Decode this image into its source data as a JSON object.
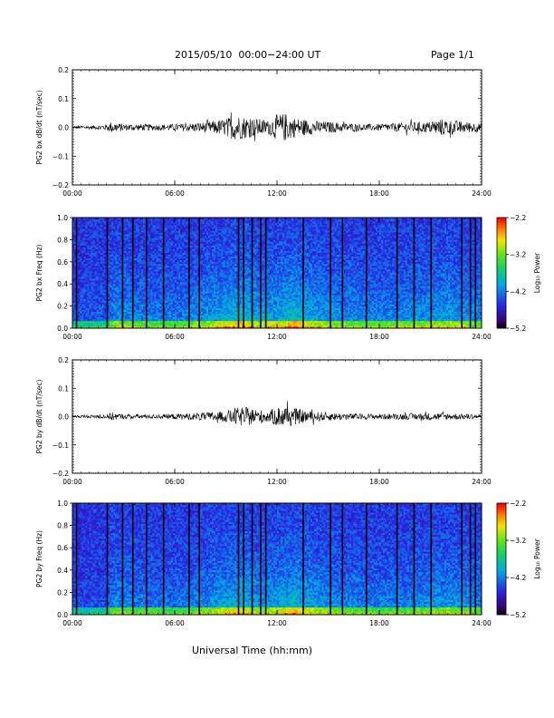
{
  "header": {
    "title": "2015/05/10  00:00−24:00 UT",
    "page": "Page 1/1"
  },
  "footer": {
    "xlabel": "Universal Time (hh:mm)"
  },
  "colors": {
    "trace": "#000000",
    "frame": "#000000",
    "background": "#ffffff"
  },
  "chart_data": [
    {
      "type": "line",
      "ylabel": "PG2 bx dB/dt (nT/sec)",
      "ylim": [
        -0.2,
        0.2
      ],
      "yticks": [
        "0.2",
        "0.1",
        "0.0",
        "−0.1",
        "−0.2"
      ],
      "xlim": [
        "00:00",
        "24:00"
      ],
      "xticks": [
        "00:00",
        "06:00",
        "12:00",
        "18:00",
        "24:00"
      ],
      "envelope": {
        "x_hours": [
          0,
          1,
          2,
          2.3,
          3,
          4,
          5,
          6,
          7,
          8,
          9,
          9.5,
          10,
          11,
          11.5,
          12,
          12.5,
          13,
          14,
          15,
          16,
          17,
          18,
          19,
          20,
          21,
          21.5,
          22,
          23,
          24
        ],
        "amplitude": [
          0.005,
          0.006,
          0.01,
          0.02,
          0.012,
          0.012,
          0.01,
          0.012,
          0.015,
          0.02,
          0.03,
          0.045,
          0.04,
          0.03,
          0.025,
          0.045,
          0.05,
          0.035,
          0.025,
          0.02,
          0.015,
          0.012,
          0.012,
          0.015,
          0.018,
          0.02,
          0.03,
          0.028,
          0.02,
          0.015
        ]
      }
    },
    {
      "type": "heatmap",
      "ylabel": "PG2 bx Freq (Hz)",
      "ylim": [
        0.0,
        1.0
      ],
      "yticks": [
        "1.0",
        "0.8",
        "0.6",
        "0.4",
        "0.2",
        "0.0"
      ],
      "xlim": [
        "00:00",
        "24:00"
      ],
      "xticks": [
        "00:00",
        "06:00",
        "12:00",
        "18:00",
        "24:00"
      ],
      "colorbar": {
        "label": "Log₁₀ Power",
        "range": [
          -5.2,
          -2.2
        ],
        "ticks": [
          "−2.2",
          "−3.2",
          "−4.2",
          "−5.2"
        ]
      },
      "activity": {
        "x_hours": [
          0,
          2,
          2.5,
          4,
          6,
          8,
          9,
          10,
          11,
          12,
          13,
          14,
          16,
          18,
          20,
          21,
          22,
          23,
          24
        ],
        "level": [
          0.15,
          0.2,
          0.5,
          0.4,
          0.35,
          0.5,
          0.65,
          0.7,
          0.55,
          0.6,
          0.75,
          0.6,
          0.45,
          0.4,
          0.45,
          0.5,
          0.55,
          0.5,
          0.4
        ]
      },
      "gap_hours": [
        0.2,
        2.0,
        2.9,
        3.5,
        4.3,
        5.3,
        6.8,
        7.4,
        9.7,
        10.0,
        10.5,
        11.0,
        11.3,
        13.5,
        15.1,
        15.8,
        17.2,
        19.0,
        20.0,
        21.0,
        22.8,
        23.3,
        23.6
      ]
    },
    {
      "type": "line",
      "ylabel": "PG2 by dB/dt (nT/sec)",
      "ylim": [
        -0.2,
        0.2
      ],
      "yticks": [
        "0.2",
        "0.1",
        "0.0",
        "−0.1",
        "−0.2"
      ],
      "xlim": [
        "00:00",
        "24:00"
      ],
      "xticks": [
        "00:00",
        "06:00",
        "12:00",
        "18:00",
        "24:00"
      ],
      "envelope": {
        "x_hours": [
          0,
          1,
          2,
          2.3,
          3,
          4,
          5,
          6,
          7,
          8,
          9,
          9.5,
          10,
          11,
          11.5,
          12,
          12.5,
          13,
          14,
          15,
          16,
          17,
          18,
          19,
          20,
          21,
          22,
          23,
          24
        ],
        "amplitude": [
          0.004,
          0.005,
          0.008,
          0.015,
          0.008,
          0.008,
          0.007,
          0.01,
          0.012,
          0.015,
          0.02,
          0.03,
          0.035,
          0.025,
          0.02,
          0.035,
          0.04,
          0.03,
          0.018,
          0.015,
          0.012,
          0.01,
          0.01,
          0.01,
          0.012,
          0.013,
          0.012,
          0.01,
          0.008
        ]
      }
    },
    {
      "type": "heatmap",
      "ylabel": "PG2 by Freq (Hz)",
      "ylim": [
        0.0,
        1.0
      ],
      "yticks": [
        "1.0",
        "0.8",
        "0.6",
        "0.4",
        "0.2",
        "0.0"
      ],
      "xlim": [
        "00:00",
        "24:00"
      ],
      "xticks": [
        "00:00",
        "06:00",
        "12:00",
        "18:00",
        "24:00"
      ],
      "colorbar": {
        "label": "Log₁₀ Power",
        "range": [
          -5.2,
          -2.2
        ],
        "ticks": [
          "−2.2",
          "−3.2",
          "−4.2",
          "−5.2"
        ]
      },
      "activity": {
        "x_hours": [
          0,
          2,
          2.5,
          4,
          6,
          8,
          9,
          10,
          11,
          12,
          13,
          14,
          16,
          18,
          20,
          21,
          22,
          23,
          24
        ],
        "level": [
          0.1,
          0.15,
          0.45,
          0.35,
          0.3,
          0.45,
          0.6,
          0.65,
          0.5,
          0.55,
          0.7,
          0.55,
          0.4,
          0.35,
          0.4,
          0.45,
          0.5,
          0.45,
          0.35
        ]
      },
      "gap_hours": [
        0.2,
        2.0,
        2.9,
        3.5,
        4.3,
        5.3,
        6.8,
        7.4,
        9.7,
        10.0,
        10.5,
        11.0,
        11.3,
        13.5,
        15.1,
        15.8,
        17.2,
        19.0,
        20.0,
        21.0,
        22.8,
        23.3,
        23.6
      ]
    }
  ]
}
